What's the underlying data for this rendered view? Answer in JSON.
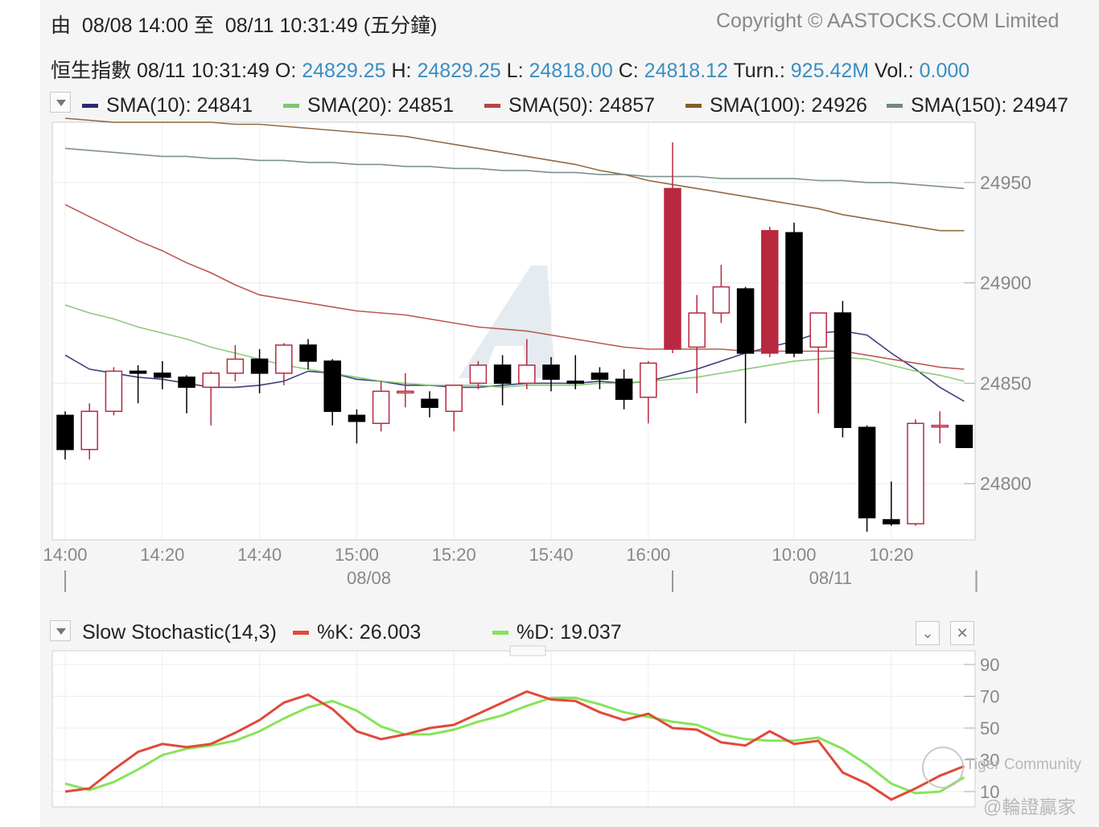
{
  "header": {
    "from_char": "由",
    "from_time": "08/08 14:00",
    "to_char": "至",
    "to_time": "08/11 10:31:49",
    "interval": "(五分鐘)",
    "copyright": "Copyright © AASTOCKS.COM Limited"
  },
  "quote": {
    "name": "恒生指數",
    "time": "08/11 10:31:49",
    "o_label": "O:",
    "o": "24829.25",
    "h_label": "H:",
    "h": "24829.25",
    "l_label": "L:",
    "l": "24818.00",
    "c_label": "C:",
    "c": "24818.12",
    "turn_label": "Turn.:",
    "turn": "925.42M",
    "vol_label": "Vol.:",
    "vol": "0.000"
  },
  "sma_legend": [
    {
      "label": "SMA(10): 24841",
      "color": "#2a2a6e"
    },
    {
      "label": "SMA(20): 24851",
      "color": "#7cc86a"
    },
    {
      "label": "SMA(50): 24857",
      "color": "#b5463f"
    },
    {
      "label": "SMA(100): 24926",
      "color": "#8a5a2b"
    },
    {
      "label": "SMA(150): 24947",
      "color": "#6f8684"
    }
  ],
  "stoch_legend": {
    "title": "Slow Stochastic(14,3)",
    "k_label": "%K: 26.003",
    "d_label": "%D: 19.037",
    "k_color": "#e04a3a",
    "d_color": "#86e45a"
  },
  "watermark": {
    "community": "Tiger Community",
    "handle": "@輪證贏家"
  },
  "chart_data": [
    {
      "type": "candlestick",
      "ylim": [
        24772,
        24980
      ],
      "yticks": [
        "24950",
        "24900",
        "24850",
        "24800"
      ],
      "ytick_values": [
        24950,
        24900,
        24850,
        24800
      ],
      "xtick_labels": [
        "14:00",
        "14:20",
        "14:40",
        "15:00",
        "15:20",
        "15:40",
        "16:00",
        "10:00",
        "10:20"
      ],
      "xtick_index": [
        0,
        4,
        8,
        12,
        16,
        20,
        24,
        30,
        34
      ],
      "date_labels": [
        "08/08",
        "08/11"
      ],
      "date_label_index": [
        12.5,
        31.5
      ],
      "session_divider_index": [
        0,
        25,
        37.5
      ],
      "up_color": "#b8283f",
      "down_color": "#000000",
      "candles": [
        {
          "o": 24834,
          "h": 24836,
          "l": 24812,
          "c": 24817
        },
        {
          "o": 24817,
          "h": 24840,
          "l": 24812,
          "c": 24836
        },
        {
          "o": 24836,
          "h": 24858,
          "l": 24834,
          "c": 24856
        },
        {
          "o": 24856,
          "h": 24859,
          "l": 24840,
          "c": 24855
        },
        {
          "o": 24855,
          "h": 24861,
          "l": 24847,
          "c": 24853
        },
        {
          "o": 24853,
          "h": 24854,
          "l": 24835,
          "c": 24848
        },
        {
          "o": 24848,
          "h": 24856,
          "l": 24829,
          "c": 24855
        },
        {
          "o": 24855,
          "h": 24869,
          "l": 24851,
          "c": 24862
        },
        {
          "o": 24862,
          "h": 24867,
          "l": 24845,
          "c": 24855
        },
        {
          "o": 24855,
          "h": 24870,
          "l": 24849,
          "c": 24869
        },
        {
          "o": 24869,
          "h": 24872,
          "l": 24857,
          "c": 24861
        },
        {
          "o": 24861,
          "h": 24862,
          "l": 24829,
          "c": 24836
        },
        {
          "o": 24834,
          "h": 24837,
          "l": 24820,
          "c": 24831
        },
        {
          "o": 24830,
          "h": 24851,
          "l": 24826,
          "c": 24846
        },
        {
          "o": 24846,
          "h": 24855,
          "l": 24838,
          "c": 24846
        },
        {
          "o": 24842,
          "h": 24846,
          "l": 24833,
          "c": 24838
        },
        {
          "o": 24836,
          "h": 24849,
          "l": 24826,
          "c": 24849
        },
        {
          "o": 24850,
          "h": 24861,
          "l": 24847,
          "c": 24859
        },
        {
          "o": 24859,
          "h": 24864,
          "l": 24839,
          "c": 24850
        },
        {
          "o": 24850,
          "h": 24872,
          "l": 24847,
          "c": 24859
        },
        {
          "o": 24859,
          "h": 24863,
          "l": 24846,
          "c": 24852
        },
        {
          "o": 24851,
          "h": 24864,
          "l": 24847,
          "c": 24850
        },
        {
          "o": 24855,
          "h": 24858,
          "l": 24847,
          "c": 24852
        },
        {
          "o": 24852,
          "h": 24857,
          "l": 24837,
          "c": 24842
        },
        {
          "o": 24843,
          "h": 24861,
          "l": 24830,
          "c": 24860
        },
        {
          "o": 24867,
          "h": 24970,
          "l": 24865,
          "c": 24947
        },
        {
          "o": 24868,
          "h": 24894,
          "l": 24845,
          "c": 24885
        },
        {
          "o": 24885,
          "h": 24909,
          "l": 24880,
          "c": 24898
        },
        {
          "o": 24897,
          "h": 24898,
          "l": 24830,
          "c": 24865
        },
        {
          "o": 24865,
          "h": 24928,
          "l": 24863,
          "c": 24926
        },
        {
          "o": 24925,
          "h": 24930,
          "l": 24863,
          "c": 24865
        },
        {
          "o": 24868,
          "h": 24885,
          "l": 24835,
          "c": 24885
        },
        {
          "o": 24885,
          "h": 24891,
          "l": 24823,
          "c": 24828
        },
        {
          "o": 24828,
          "h": 24829,
          "l": 24776,
          "c": 24783
        },
        {
          "o": 24782,
          "h": 24801,
          "l": 24779,
          "c": 24780
        },
        {
          "o": 24780,
          "h": 24832,
          "l": 24779,
          "c": 24830
        },
        {
          "o": 24829,
          "h": 24836,
          "l": 24820,
          "c": 24829
        },
        {
          "o": 24829,
          "h": 24829,
          "l": 24818,
          "c": 24818
        }
      ],
      "series": [
        {
          "name": "SMA(10)",
          "color": "#2a2a6e",
          "values": [
            24864,
            24857,
            24855,
            24853,
            24852,
            24850,
            24848,
            24848,
            24849,
            24851,
            24856,
            24855,
            24852,
            24851,
            24849,
            24849,
            24848,
            24848,
            24849,
            24850,
            24850,
            24850,
            24851,
            24850,
            24851,
            24854,
            24857,
            24861,
            24865,
            24868,
            24871,
            24875,
            24876,
            24874,
            24865,
            24857,
            24848,
            24841
          ]
        },
        {
          "name": "SMA(20)",
          "color": "#7cc86a",
          "values": [
            24889,
            24885,
            24882,
            24878,
            24875,
            24872,
            24868,
            24865,
            24862,
            24859,
            24857,
            24855,
            24853,
            24851,
            24850,
            24849,
            24849,
            24849,
            24848,
            24849,
            24849,
            24849,
            24850,
            24850,
            24851,
            24852,
            24853,
            24855,
            24857,
            24859,
            24861,
            24862,
            24863,
            24862,
            24859,
            24856,
            24854,
            24851
          ]
        },
        {
          "name": "SMA(50)",
          "color": "#b5463f",
          "values": [
            24939,
            24933,
            24927,
            24921,
            24916,
            24910,
            24905,
            24899,
            24894,
            24892,
            24890,
            24888,
            24886,
            24885,
            24884,
            24882,
            24880,
            24878,
            24877,
            24876,
            24874,
            24872,
            24870,
            24868,
            24867,
            24867,
            24867,
            24867,
            24866,
            24866,
            24866,
            24866,
            24866,
            24864,
            24862,
            24860,
            24858,
            24857
          ]
        },
        {
          "name": "SMA(100)",
          "color": "#8a5a2b",
          "values": [
            24982,
            24981,
            24980,
            24980,
            24980,
            24980,
            24980,
            24979,
            24979,
            24978,
            24977,
            24976,
            24975,
            24974,
            24973,
            24971,
            24969,
            24967,
            24965,
            24963,
            24961,
            24959,
            24956,
            24954,
            24951,
            24949,
            24947,
            24945,
            24943,
            24941,
            24939,
            24937,
            24934,
            24932,
            24930,
            24928,
            24926,
            24926
          ]
        },
        {
          "name": "SMA(150)",
          "color": "#6f8684",
          "values": [
            24967,
            24966,
            24965,
            24964,
            24963,
            24963,
            24962,
            24962,
            24961,
            24961,
            24960,
            24960,
            24959,
            24959,
            24958,
            24958,
            24957,
            24957,
            24956,
            24956,
            24955,
            24955,
            24954,
            24954,
            24953,
            24953,
            24953,
            24952,
            24952,
            24952,
            24952,
            24951,
            24951,
            24950,
            24950,
            24949,
            24948,
            24947
          ]
        }
      ]
    },
    {
      "type": "line",
      "title": "Slow Stochastic(14,3)",
      "ylim": [
        0,
        100
      ],
      "yticks": [
        "90",
        "70",
        "50",
        "30",
        "10"
      ],
      "ytick_values": [
        90,
        70,
        50,
        30,
        10
      ],
      "series": [
        {
          "name": "%K",
          "color": "#e04a3a",
          "values": [
            10,
            12,
            24,
            35,
            40,
            38,
            40,
            47,
            55,
            66,
            71,
            62,
            48,
            43,
            46,
            50,
            52,
            59,
            66,
            73,
            68,
            67,
            60,
            55,
            59,
            50,
            49,
            41,
            39,
            48,
            40,
            42,
            22,
            15,
            5,
            12,
            20,
            26
          ]
        },
        {
          "name": "%D",
          "color": "#86e45a",
          "values": [
            15,
            11,
            16,
            24,
            33,
            37,
            39,
            42,
            48,
            56,
            63,
            67,
            61,
            51,
            46,
            46,
            49,
            54,
            58,
            64,
            69,
            69,
            65,
            60,
            57,
            54,
            52,
            46,
            43,
            42,
            42,
            44,
            37,
            27,
            15,
            9,
            10,
            19
          ]
        }
      ]
    }
  ]
}
